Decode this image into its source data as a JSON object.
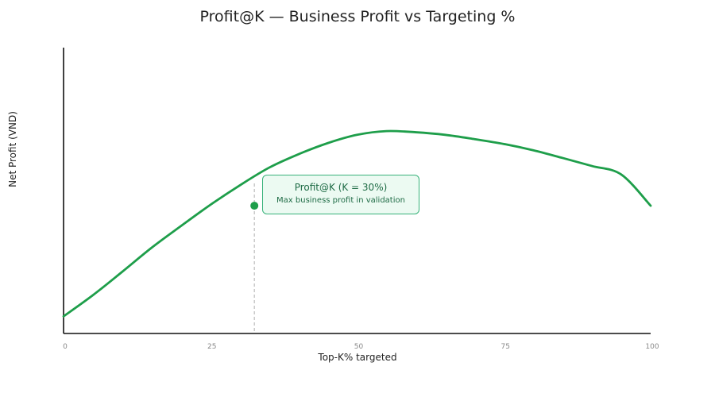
{
  "chart_data": {
    "type": "line",
    "title": "Profit@K — Business Profit vs Targeting %",
    "xlabel": "Top-K% targeted",
    "ylabel": "Net Profit (VND)",
    "xlim": [
      0,
      100
    ],
    "ylim": [
      0,
      100
    ],
    "x_ticks": [
      "0",
      "25",
      "50",
      "75",
      "100"
    ],
    "grid": false,
    "color": "#1e9e4a",
    "series": [
      {
        "x": [
          0,
          5,
          10,
          15,
          20,
          25,
          30,
          35,
          40,
          45,
          50,
          55,
          60,
          65,
          70,
          75,
          80,
          85,
          90,
          95,
          100
        ],
        "values": [
          6,
          13.4,
          21.6,
          30,
          37.6,
          45,
          51.8,
          58,
          62.7,
          66.6,
          69.5,
          70.8,
          70.4,
          69.5,
          68,
          66.3,
          64.1,
          61.4,
          58.6,
          55.6,
          44.7
        ]
      }
    ],
    "marker": {
      "x": 32.5,
      "y": 44.7
    },
    "annotation": {
      "title": "Profit@K (K = 30%)",
      "subtitle": "Max business profit in validation"
    }
  }
}
